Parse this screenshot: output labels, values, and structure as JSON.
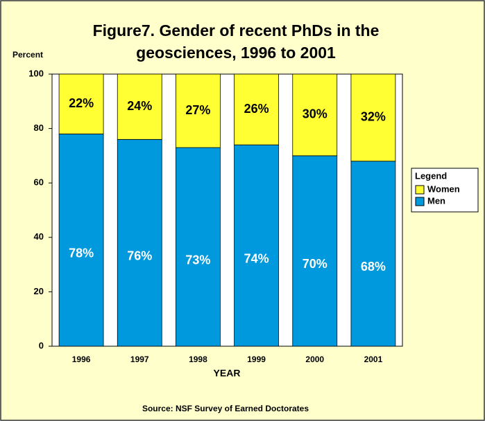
{
  "chart_data": {
    "type": "stacked_bar",
    "title": [
      "Figure7.  Gender of recent PhDs in the",
      "geosciences, 1996 to 2001"
    ],
    "y_label": "Percent",
    "x_label": "YEAR",
    "source": "Source: NSF Survey of Earned Doctorates",
    "legend_title": "Legend",
    "categories": [
      "1996",
      "1997",
      "1998",
      "1999",
      "2000",
      "2001"
    ],
    "series": [
      {
        "name": "Men",
        "color": "#0099dd",
        "values": [
          78,
          76,
          73,
          74,
          70,
          68
        ],
        "value_labels": [
          "78%",
          "76%",
          "73%",
          "74%",
          "70%",
          "68%"
        ]
      },
      {
        "name": "Women",
        "color": "#ffff33",
        "values": [
          22,
          24,
          27,
          26,
          30,
          32
        ],
        "value_labels": [
          "22%",
          "24%",
          "27%",
          "26%",
          "30%",
          "32%"
        ]
      }
    ],
    "ylim": [
      0,
      100
    ],
    "yticks": [
      0,
      20,
      40,
      60,
      80,
      100
    ]
  }
}
